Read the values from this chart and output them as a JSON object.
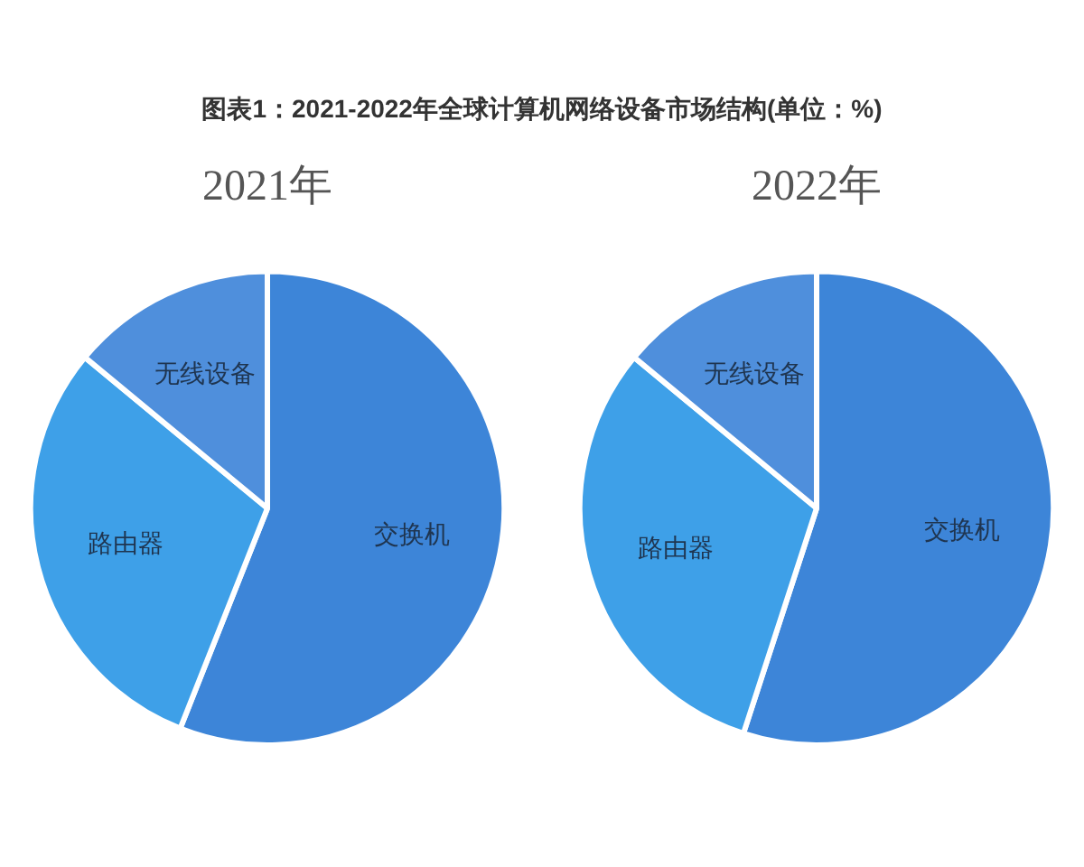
{
  "chart_data": [
    {
      "type": "pie",
      "title": "2021年",
      "annotations": [
        "图表1：2021-2022年全球计算机网络设备市场结构(单位：%)"
      ],
      "categories": [
        "交换机",
        "路由器",
        "无线设备"
      ],
      "values": [
        56,
        30,
        14
      ],
      "colors": [
        "#3d85d8",
        "#3ea0e8",
        "#4f8fdc"
      ],
      "legend": false
    },
    {
      "type": "pie",
      "title": "2022年",
      "categories": [
        "交换机",
        "路由器",
        "无线设备"
      ],
      "values": [
        55,
        31,
        14
      ],
      "colors": [
        "#3d85d8",
        "#3ea0e8",
        "#4f8fdc"
      ],
      "legend": false
    }
  ]
}
